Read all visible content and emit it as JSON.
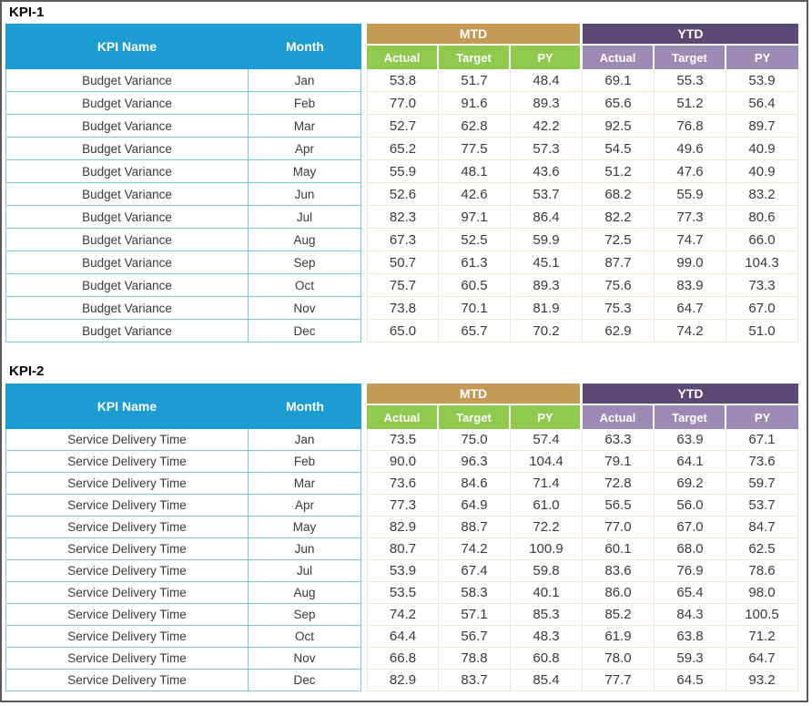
{
  "colors": {
    "header_blue": "#1B9CD3",
    "group_mtd_tan": "#C49A55",
    "sub_green": "#8FC94D",
    "group_ytd_purple": "#5A4A73",
    "sub_lavender": "#9C8BB5",
    "border_teal": "#77CBDC",
    "border_cream": "#F0E7CE",
    "text_dark": "#3A3A3A",
    "frame_gray": "#58595B"
  },
  "chart_data": [
    {
      "type": "table",
      "title": "KPI-1",
      "columns_left": [
        "KPI Name",
        "Month"
      ],
      "groups": [
        {
          "label": "MTD",
          "sub": [
            "Actual",
            "Target",
            "PY"
          ]
        },
        {
          "label": "YTD",
          "sub": [
            "Actual",
            "Target",
            "PY"
          ]
        }
      ],
      "rows": [
        {
          "kpi": "Budget Variance",
          "month": "Jan",
          "values": [
            "53.8",
            "51.7",
            "48.4",
            "69.1",
            "55.3",
            "53.9"
          ]
        },
        {
          "kpi": "Budget Variance",
          "month": "Feb",
          "values": [
            "77.0",
            "91.6",
            "89.3",
            "65.6",
            "51.2",
            "56.4"
          ]
        },
        {
          "kpi": "Budget Variance",
          "month": "Mar",
          "values": [
            "52.7",
            "62.8",
            "42.2",
            "92.5",
            "76.8",
            "89.7"
          ]
        },
        {
          "kpi": "Budget Variance",
          "month": "Apr",
          "values": [
            "65.2",
            "77.5",
            "57.3",
            "54.5",
            "49.6",
            "40.9"
          ]
        },
        {
          "kpi": "Budget Variance",
          "month": "May",
          "values": [
            "55.9",
            "48.1",
            "43.6",
            "51.2",
            "47.6",
            "40.9"
          ]
        },
        {
          "kpi": "Budget Variance",
          "month": "Jun",
          "values": [
            "52.6",
            "42.6",
            "53.7",
            "68.2",
            "55.9",
            "83.2"
          ]
        },
        {
          "kpi": "Budget Variance",
          "month": "Jul",
          "values": [
            "82.3",
            "97.1",
            "86.4",
            "82.2",
            "77.3",
            "80.6"
          ]
        },
        {
          "kpi": "Budget Variance",
          "month": "Aug",
          "values": [
            "67.3",
            "52.5",
            "59.9",
            "72.5",
            "74.7",
            "66.0"
          ]
        },
        {
          "kpi": "Budget Variance",
          "month": "Sep",
          "values": [
            "50.7",
            "61.3",
            "45.1",
            "87.7",
            "99.0",
            "104.3"
          ]
        },
        {
          "kpi": "Budget Variance",
          "month": "Oct",
          "values": [
            "75.7",
            "60.5",
            "89.3",
            "75.6",
            "83.9",
            "73.3"
          ]
        },
        {
          "kpi": "Budget Variance",
          "month": "Nov",
          "values": [
            "73.8",
            "70.1",
            "81.9",
            "75.3",
            "64.7",
            "67.0"
          ]
        },
        {
          "kpi": "Budget Variance",
          "month": "Dec",
          "values": [
            "65.0",
            "65.7",
            "70.2",
            "62.9",
            "74.2",
            "51.0"
          ]
        }
      ]
    },
    {
      "type": "table",
      "title": "KPI-2",
      "columns_left": [
        "KPI Name",
        "Month"
      ],
      "groups": [
        {
          "label": "MTD",
          "sub": [
            "Actual",
            "Target",
            "PY"
          ]
        },
        {
          "label": "YTD",
          "sub": [
            "Actual",
            "Target",
            "PY"
          ]
        }
      ],
      "rows": [
        {
          "kpi": "Service Delivery Time",
          "month": "Jan",
          "values": [
            "73.5",
            "75.0",
            "57.4",
            "63.3",
            "63.9",
            "67.1"
          ]
        },
        {
          "kpi": "Service Delivery Time",
          "month": "Feb",
          "values": [
            "90.0",
            "96.3",
            "104.4",
            "79.1",
            "64.1",
            "73.6"
          ]
        },
        {
          "kpi": "Service Delivery Time",
          "month": "Mar",
          "values": [
            "73.6",
            "84.6",
            "71.4",
            "72.8",
            "69.2",
            "59.7"
          ]
        },
        {
          "kpi": "Service Delivery Time",
          "month": "Apr",
          "values": [
            "77.3",
            "64.9",
            "61.0",
            "56.5",
            "56.0",
            "53.7"
          ]
        },
        {
          "kpi": "Service Delivery Time",
          "month": "May",
          "values": [
            "82.9",
            "88.7",
            "72.2",
            "77.0",
            "67.0",
            "84.7"
          ]
        },
        {
          "kpi": "Service Delivery Time",
          "month": "Jun",
          "values": [
            "80.7",
            "74.2",
            "100.9",
            "60.1",
            "68.0",
            "62.5"
          ]
        },
        {
          "kpi": "Service Delivery Time",
          "month": "Jul",
          "values": [
            "53.9",
            "67.4",
            "59.8",
            "83.6",
            "76.9",
            "78.6"
          ]
        },
        {
          "kpi": "Service Delivery Time",
          "month": "Aug",
          "values": [
            "53.5",
            "58.3",
            "40.1",
            "86.0",
            "65.4",
            "98.0"
          ]
        },
        {
          "kpi": "Service Delivery Time",
          "month": "Sep",
          "values": [
            "74.2",
            "57.1",
            "85.3",
            "85.2",
            "84.3",
            "100.5"
          ]
        },
        {
          "kpi": "Service Delivery Time",
          "month": "Oct",
          "values": [
            "64.4",
            "56.7",
            "48.3",
            "61.9",
            "63.8",
            "71.2"
          ]
        },
        {
          "kpi": "Service Delivery Time",
          "month": "Nov",
          "values": [
            "66.8",
            "78.8",
            "60.8",
            "78.0",
            "59.3",
            "64.7"
          ]
        },
        {
          "kpi": "Service Delivery Time",
          "month": "Dec",
          "values": [
            "82.9",
            "83.7",
            "85.4",
            "77.7",
            "64.5",
            "93.2"
          ]
        }
      ]
    }
  ]
}
